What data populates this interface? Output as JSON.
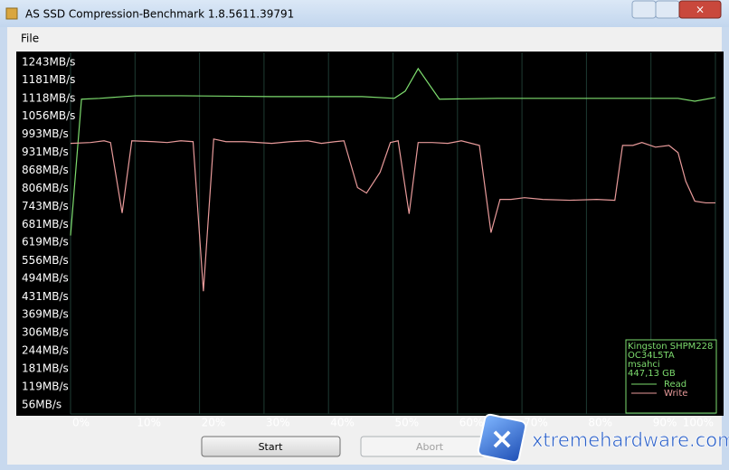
{
  "window": {
    "title": "AS SSD Compression-Benchmark 1.8.5611.39791",
    "menu": [
      "File"
    ],
    "buttons": [
      "Start",
      "Abort"
    ]
  },
  "watermark": "xtremehardware.com",
  "chart_data": {
    "type": "line",
    "xlim": [
      0,
      100
    ],
    "ylim": [
      25,
      1277
    ],
    "xgrid": true,
    "xticks": [
      {
        "value": 0,
        "label": "0%"
      },
      {
        "value": 10,
        "label": "10%"
      },
      {
        "value": 20,
        "label": "20%"
      },
      {
        "value": 30,
        "label": "30%"
      },
      {
        "value": 40,
        "label": "40%"
      },
      {
        "value": 50,
        "label": "50%"
      },
      {
        "value": 60,
        "label": "60%"
      },
      {
        "value": 70,
        "label": "70%"
      },
      {
        "value": 80,
        "label": "80%"
      },
      {
        "value": 90,
        "label": "90%"
      },
      {
        "value": 100,
        "label": "100%"
      }
    ],
    "yticks": [
      {
        "value": 56,
        "label": "56MB/s"
      },
      {
        "value": 119,
        "label": "119MB/s"
      },
      {
        "value": 181,
        "label": "181MB/s"
      },
      {
        "value": 244,
        "label": "244MB/s"
      },
      {
        "value": 306,
        "label": "306MB/s"
      },
      {
        "value": 369,
        "label": "369MB/s"
      },
      {
        "value": 431,
        "label": "431MB/s"
      },
      {
        "value": 494,
        "label": "494MB/s"
      },
      {
        "value": 556,
        "label": "556MB/s"
      },
      {
        "value": 619,
        "label": "619MB/s"
      },
      {
        "value": 681,
        "label": "681MB/s"
      },
      {
        "value": 743,
        "label": "743MB/s"
      },
      {
        "value": 806,
        "label": "806MB/s"
      },
      {
        "value": 868,
        "label": "868MB/s"
      },
      {
        "value": 931,
        "label": "931MB/s"
      },
      {
        "value": 993,
        "label": "993MB/s"
      },
      {
        "value": 1056,
        "label": "1056MB/s"
      },
      {
        "value": 1118,
        "label": "1118MB/s"
      },
      {
        "value": 1181,
        "label": "1181MB/s"
      },
      {
        "value": 1243,
        "label": "1243MB/s"
      }
    ],
    "legend_info": [
      "Kingston SHPM228",
      "OC34L5TA",
      "msahci",
      "447,13 GB"
    ],
    "legend": "lower right",
    "series": [
      {
        "name": "Read",
        "color": "#7ddc6e",
        "x": [
          0,
          1.7,
          4.5,
          10.1,
          17.1,
          31.1,
          45.2,
          50.2,
          51.9,
          53.9,
          57.2,
          66.2,
          80.2,
          94.2,
          96.8,
          100
        ],
        "values": [
          643,
          1115,
          1118,
          1127,
          1127,
          1124,
          1124,
          1118,
          1143,
          1221,
          1115,
          1118,
          1118,
          1118,
          1108,
          1121
        ]
      },
      {
        "name": "Write",
        "color": "#e89a9a",
        "x": [
          0,
          3.1,
          5.2,
          6.2,
          8.0,
          9.5,
          12.9,
          15.0,
          17.1,
          19.0,
          20.6,
          22.2,
          24.1,
          27.0,
          31.2,
          34.0,
          36.8,
          38.9,
          41.0,
          42.4,
          44.5,
          45.9,
          48.0,
          49.6,
          50.8,
          52.5,
          53.9,
          56.1,
          58.5,
          60.6,
          63.4,
          65.2,
          66.6,
          68.3,
          70.4,
          73.2,
          77.4,
          81.6,
          84.4,
          85.6,
          87.2,
          88.6,
          90.7,
          92.8,
          94.2,
          95.4,
          96.8,
          98.5,
          100
        ],
        "values": [
          962,
          965,
          971,
          965,
          721,
          971,
          968,
          965,
          971,
          968,
          450,
          977,
          968,
          968,
          962,
          968,
          971,
          962,
          968,
          971,
          809,
          790,
          862,
          965,
          971,
          718,
          965,
          965,
          962,
          971,
          955,
          653,
          768,
          768,
          774,
          768,
          765,
          768,
          765,
          955,
          955,
          965,
          949,
          955,
          930,
          831,
          762,
          756,
          756
        ]
      }
    ]
  }
}
